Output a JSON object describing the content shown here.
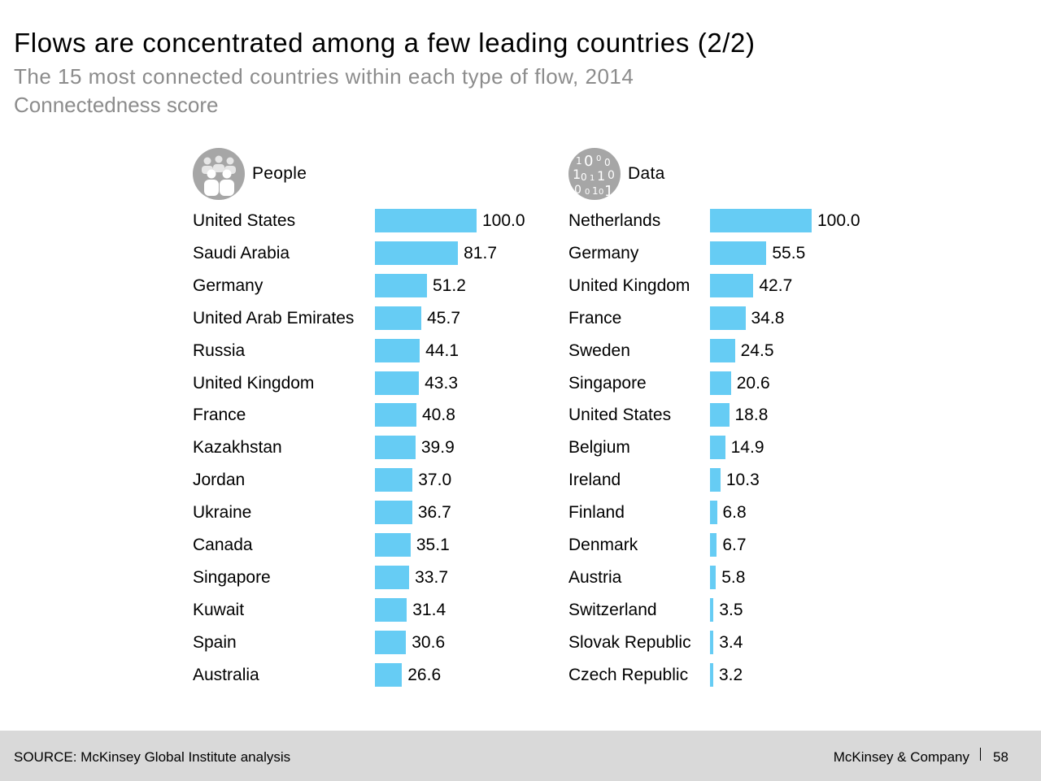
{
  "header": {
    "title": "Flows are concentrated among a few leading countries (2/2)",
    "subtitle": "The 15 most connected countries within each type of flow, 2014",
    "unit": "Connectedness score"
  },
  "colors": {
    "bar": "#66ccf4",
    "icon_bg": "#a6a6a6",
    "subtitle": "#8c8c8c",
    "footer_bg": "#d9d9d9"
  },
  "chart_data": [
    {
      "type": "bar",
      "orientation": "horizontal",
      "title": "People",
      "icon": "people-icon",
      "categories": [
        "United States",
        "Saudi Arabia",
        "Germany",
        "United Arab Emirates",
        "Russia",
        "United Kingdom",
        "France",
        "Kazakhstan",
        "Jordan",
        "Ukraine",
        "Canada",
        "Singapore",
        "Kuwait",
        "Spain",
        "Australia"
      ],
      "values": [
        100.0,
        81.7,
        51.2,
        45.7,
        44.1,
        43.3,
        40.8,
        39.9,
        37.0,
        36.7,
        35.1,
        33.7,
        31.4,
        30.6,
        26.6
      ],
      "labels": [
        "100.0",
        "81.7",
        "51.2",
        "45.7",
        "44.1",
        "43.3",
        "40.8",
        "39.9",
        "37.0",
        "36.7",
        "35.1",
        "33.7",
        "31.4",
        "30.6",
        "26.6"
      ],
      "xlim": [
        0,
        100
      ]
    },
    {
      "type": "bar",
      "orientation": "horizontal",
      "title": "Data",
      "icon": "binary-data-icon",
      "categories": [
        "Netherlands",
        "Germany",
        "United Kingdom",
        "France",
        "Sweden",
        "Singapore",
        "United States",
        "Belgium",
        "Ireland",
        "Finland",
        "Denmark",
        "Austria",
        "Switzerland",
        "Slovak Republic",
        "Czech Republic"
      ],
      "values": [
        100.0,
        55.5,
        42.7,
        34.8,
        24.5,
        20.6,
        18.8,
        14.9,
        10.3,
        6.8,
        6.7,
        5.8,
        3.5,
        3.4,
        3.2
      ],
      "labels": [
        "100.0",
        "55.5",
        "42.7",
        "34.8",
        "24.5",
        "20.6",
        "18.8",
        "14.9",
        "10.3",
        "6.8",
        "6.7",
        "5.8",
        "3.5",
        "3.4",
        "3.2"
      ],
      "xlim": [
        0,
        100
      ]
    }
  ],
  "footer": {
    "source": "SOURCE: McKinsey Global Institute analysis",
    "brand": "McKinsey & Company",
    "page": "58"
  }
}
